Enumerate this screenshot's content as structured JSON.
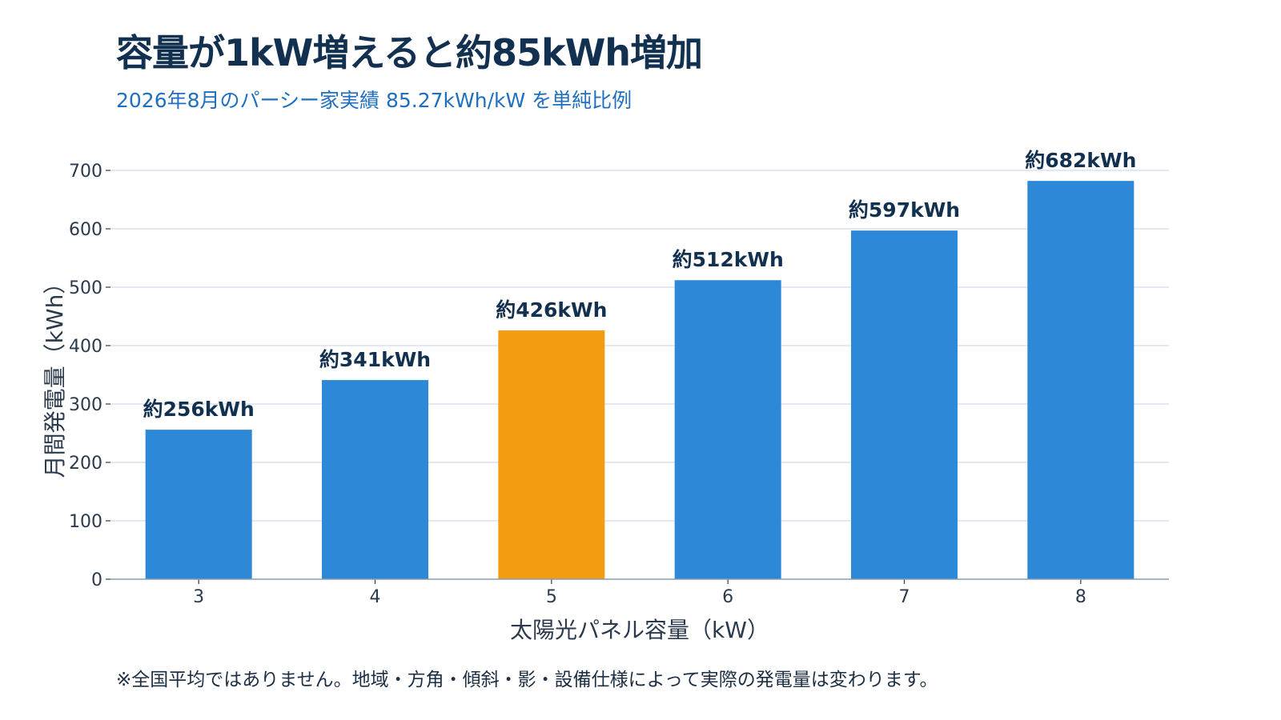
{
  "title": "容量が1kW増えると約85kWh増加",
  "subtitle": "2026年8月のパーシー家実績 85.27kWh/kW を単純比例",
  "note": "※全国平均ではありません。地域・方角・傾斜・影・設備仕様によって実際の発電量は変わります。",
  "colors": {
    "bar": "#2e88d8",
    "highlight": "#f39c12",
    "grid": "#d8e2ee",
    "axis": "#8a9bb0"
  },
  "chart_data": {
    "type": "bar",
    "categories": [
      "3",
      "4",
      "5",
      "6",
      "7",
      "8"
    ],
    "values": [
      256,
      341,
      426,
      512,
      597,
      682
    ],
    "data_labels": [
      "約256kWh",
      "約341kWh",
      "約426kWh",
      "約512kWh",
      "約597kWh",
      "約682kWh"
    ],
    "highlight_category": "5",
    "xlabel": "太陽光パネル容量（kW）",
    "ylabel": "月間発電量（kWh）",
    "ylim": [
      0,
      700
    ],
    "yticks": [
      0,
      100,
      200,
      300,
      400,
      500,
      600,
      700
    ],
    "grid": true
  }
}
